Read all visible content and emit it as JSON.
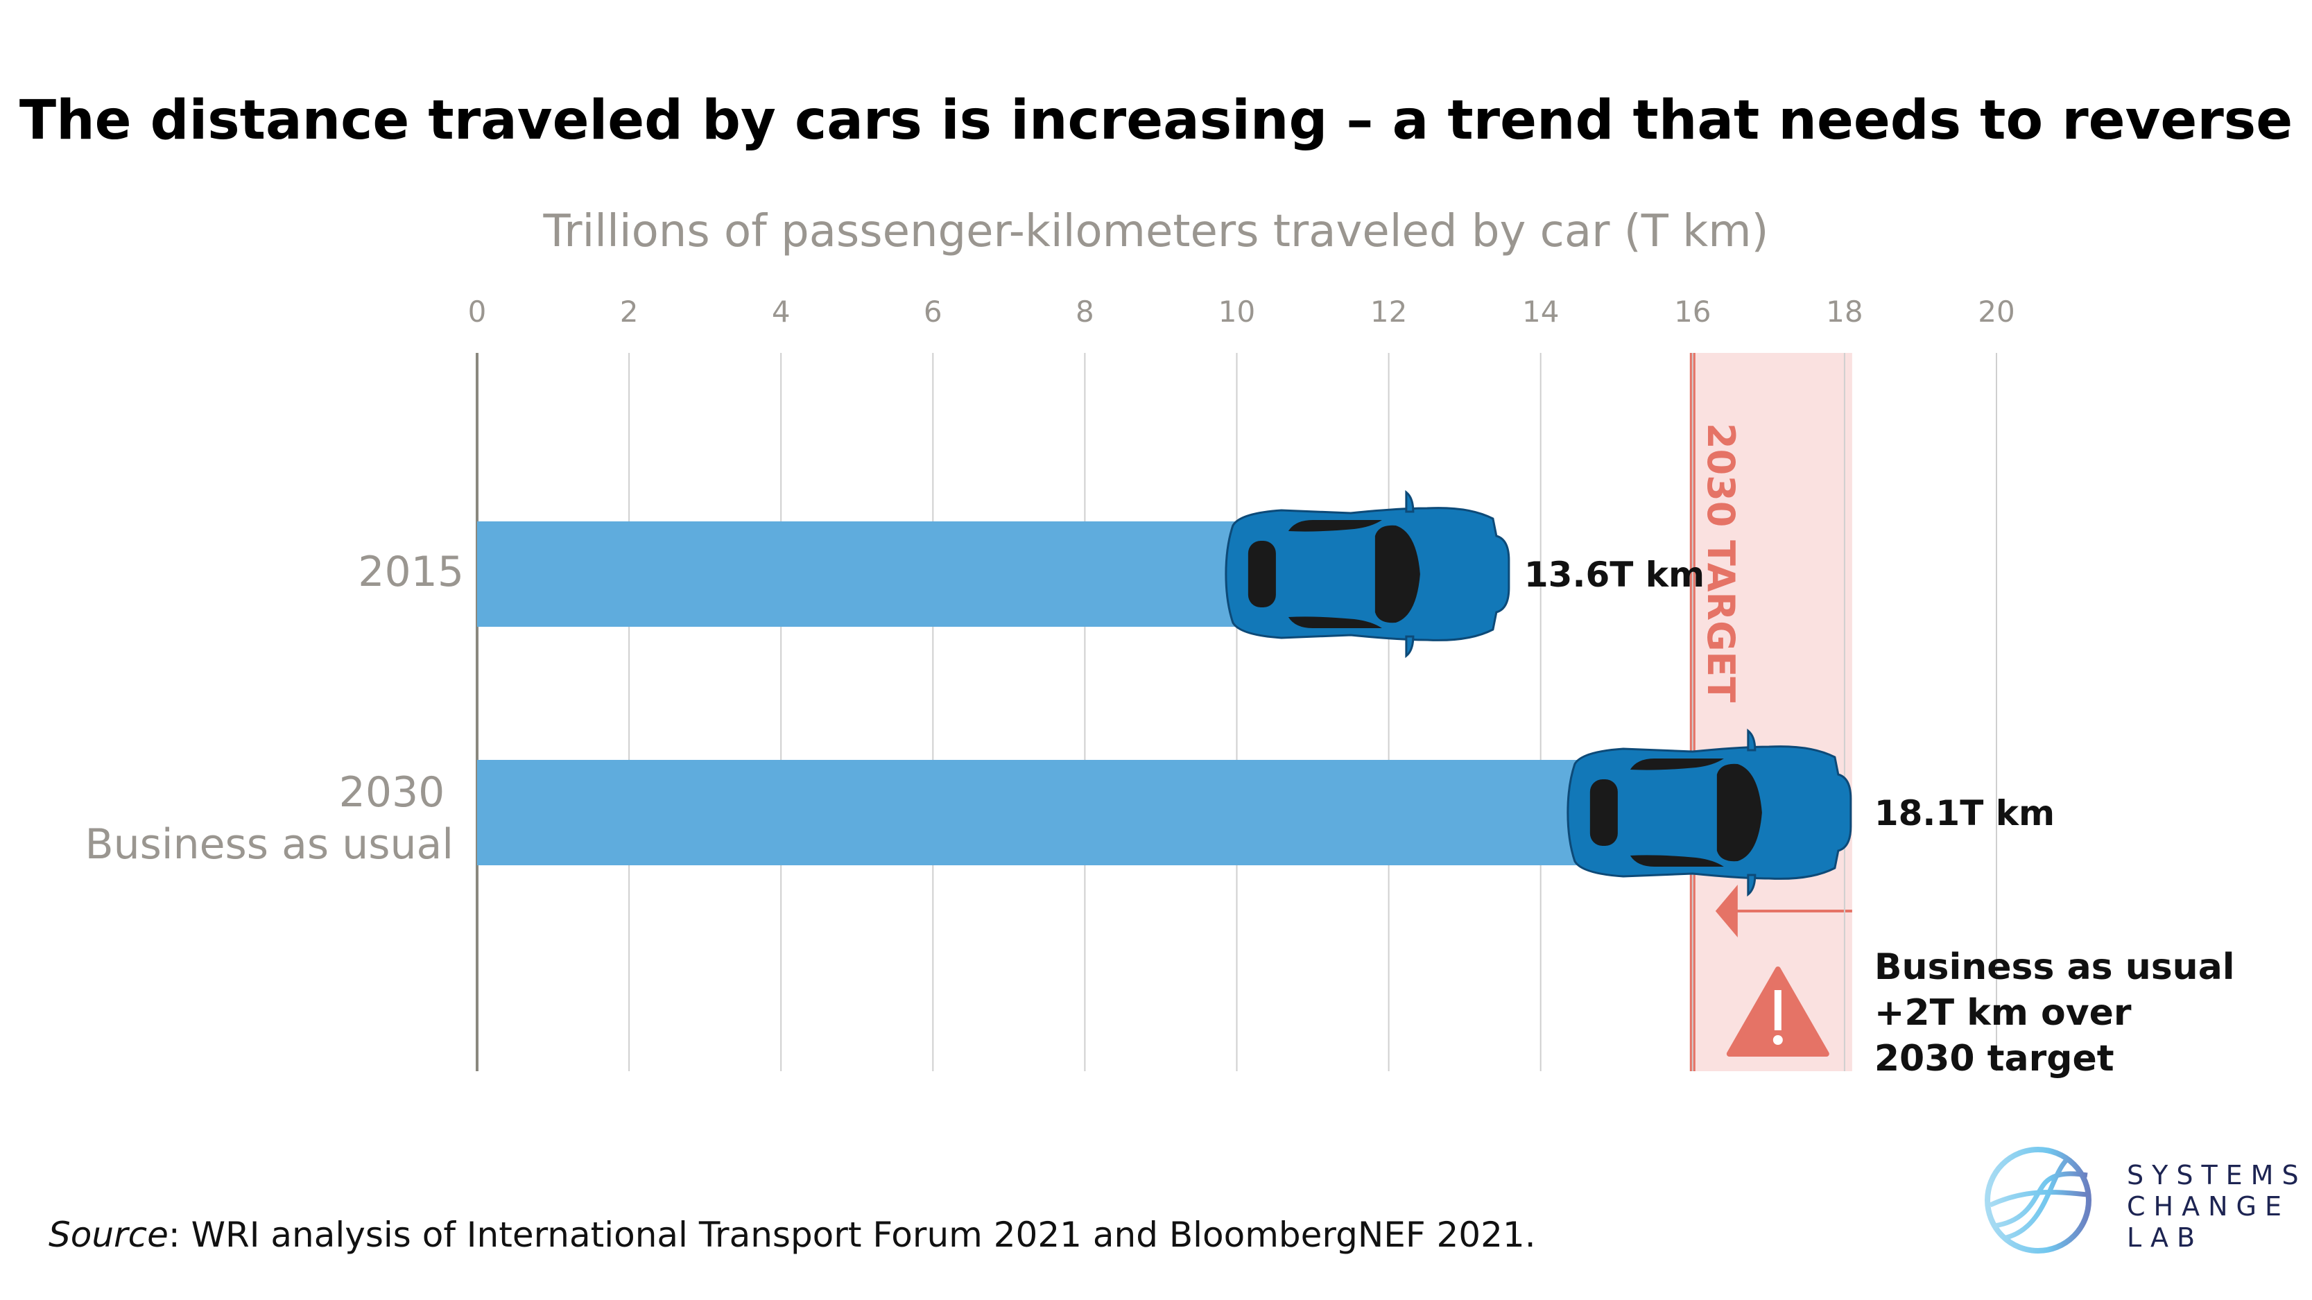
{
  "chart_data": {
    "type": "bar",
    "orientation": "horizontal",
    "title": "The distance traveled by cars is increasing – a trend that needs to reverse",
    "xlabel": "Trillions of passenger-kilometers traveled by car (T km)",
    "xlim": [
      0,
      20
    ],
    "xticks": [
      "0",
      "2",
      "4",
      "6",
      "8",
      "10",
      "12",
      "14",
      "16",
      "18",
      "20"
    ],
    "grid": true,
    "categories": [
      {
        "label": "2015",
        "label2": ""
      },
      {
        "label": "2030",
        "label2": "Business as usual"
      }
    ],
    "values": [
      13.6,
      18.1
    ],
    "value_labels": [
      "13.6T km",
      "18.1T km"
    ],
    "target": {
      "value": 16,
      "band_end": 18.1,
      "label": "2030 TARGET"
    },
    "annotation": [
      "Business as usual",
      "+2T km over",
      "2030 target"
    ],
    "colors": {
      "bar": "#5FACDD",
      "car": "#1278B8",
      "target": "#E57366",
      "band": "#FAE1E0"
    }
  },
  "source": {
    "prefix": "Source",
    "text": ": WRI analysis of International Transport Forum 2021 and BloombergNEF 2021."
  },
  "logo": {
    "lines": [
      "SYSTEMS",
      "CHANGE",
      "LAB"
    ]
  }
}
